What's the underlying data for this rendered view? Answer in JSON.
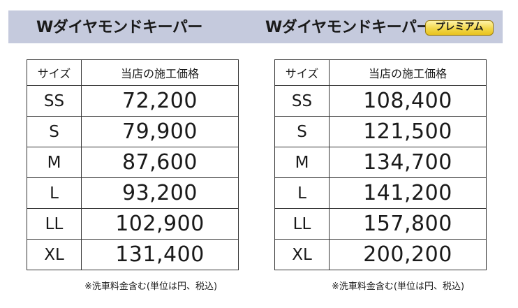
{
  "left_panel": {
    "title": "Wダイヤモンドキーパー",
    "header": {
      "size": "サイズ",
      "price": "当店の施工価格"
    },
    "rows": [
      {
        "size": "SS",
        "price": "72,200"
      },
      {
        "size": "S",
        "price": "79,900"
      },
      {
        "size": "M",
        "price": "87,600"
      },
      {
        "size": "L",
        "price": "93,200"
      },
      {
        "size": "LL",
        "price": "102,900"
      },
      {
        "size": "XL",
        "price": "131,400"
      }
    ],
    "note": "※洗車料金含む(単位は円、税込)"
  },
  "right_panel": {
    "title": "Wダイヤモンドキーパー",
    "badge": "プレミアム",
    "header": {
      "size": "サイズ",
      "price": "当店の施工価格"
    },
    "rows": [
      {
        "size": "SS",
        "price": "108,400"
      },
      {
        "size": "S",
        "price": "121,500"
      },
      {
        "size": "M",
        "price": "134,700"
      },
      {
        "size": "L",
        "price": "141,200"
      },
      {
        "size": "LL",
        "price": "157,800"
      },
      {
        "size": "XL",
        "price": "200,200"
      }
    ],
    "note": "※洗車料金含む(単位は円、税込)"
  },
  "colors": {
    "banner": "#c5cadd",
    "badge": "#f2d74a",
    "border": "#333333"
  }
}
